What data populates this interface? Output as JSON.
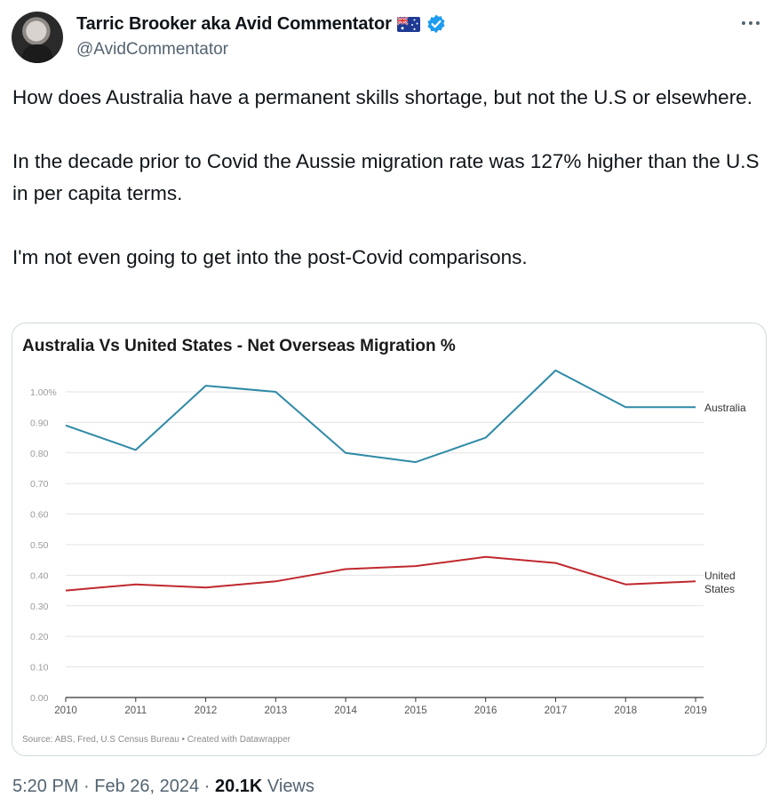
{
  "author": {
    "display_name": "Tarric Brooker aka Avid Commentator",
    "handle": "@AvidCommentator",
    "flag_icon": "australia-flag-icon",
    "verified_icon": "verified-badge-icon",
    "verified_color": "#1d9bf0"
  },
  "tweet": {
    "paragraphs": [
      "How does Australia have a permanent skills shortage, but not the U.S or elsewhere.",
      "In the decade prior to Covid the Aussie migration rate was 127% higher than the U.S in per capita terms.",
      "I'm not even going to get into the post-Covid comparisons."
    ]
  },
  "meta": {
    "time": "5:20 PM",
    "separator": "·",
    "date": "Feb 26, 2024",
    "views_count": "20.1K",
    "views_label": "Views"
  },
  "chart_data": {
    "type": "line",
    "title": "Australia Vs United States - Net Overseas Migration %",
    "source": "Source: ABS, Fred, U.S Census Bureau • Created with Datawrapper",
    "x": [
      "2010",
      "2011",
      "2012",
      "2013",
      "2014",
      "2015",
      "2016",
      "2017",
      "2018",
      "2019"
    ],
    "y_ticks": [
      "0.00",
      "0.10",
      "0.20",
      "0.30",
      "0.40",
      "0.50",
      "0.60",
      "0.70",
      "0.80",
      "0.90",
      "1.00%"
    ],
    "ylim": [
      0,
      1.0
    ],
    "grid": true,
    "series": [
      {
        "name": "Australia",
        "label_lines": [
          "Australia"
        ],
        "color": "#2e8aa6",
        "values": [
          0.89,
          0.81,
          1.02,
          1.0,
          0.8,
          0.77,
          0.85,
          1.07,
          0.95,
          0.95
        ]
      },
      {
        "name": "United States",
        "label_lines": [
          "United",
          "States"
        ],
        "color": "#c0282e",
        "values": [
          0.35,
          0.37,
          0.36,
          0.38,
          0.42,
          0.43,
          0.46,
          0.44,
          0.37,
          0.38
        ]
      }
    ]
  }
}
